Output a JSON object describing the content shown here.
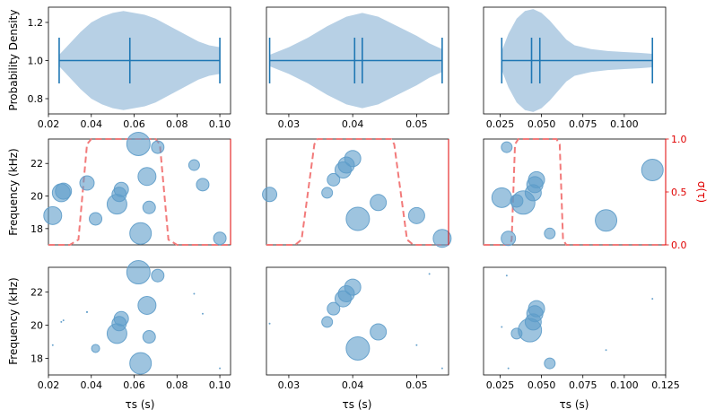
{
  "figure": {
    "labels": {
      "probability_density": "Probability Density",
      "frequency": "Frequency (kHz)",
      "sigma": "σ(τ)",
      "tau_s": "τs (s)"
    }
  },
  "chart_data": [
    {
      "type": "violin",
      "name": "violin-col1",
      "orientation": "horizontal",
      "ylabel": "Probability Density",
      "ylim": [
        0.72,
        1.28
      ],
      "yticks": [
        0.8,
        1.0,
        1.2
      ],
      "ytick_labels": [
        "0.8",
        "1.0",
        "1.2"
      ],
      "xlim": [
        0.02,
        0.105
      ],
      "xticks": [
        0.02,
        0.04,
        0.06,
        0.08,
        0.1
      ],
      "xtick_labels": [
        "0.02",
        "0.04",
        "0.06",
        "0.08",
        "0.10"
      ],
      "min": 0.025,
      "median": 0.058,
      "max": 0.1,
      "density": [
        [
          0.025,
          0.03
        ],
        [
          0.03,
          0.09
        ],
        [
          0.035,
          0.15
        ],
        [
          0.04,
          0.2
        ],
        [
          0.045,
          0.23
        ],
        [
          0.05,
          0.25
        ],
        [
          0.055,
          0.26
        ],
        [
          0.06,
          0.25
        ],
        [
          0.065,
          0.24
        ],
        [
          0.07,
          0.22
        ],
        [
          0.075,
          0.19
        ],
        [
          0.08,
          0.16
        ],
        [
          0.085,
          0.13
        ],
        [
          0.09,
          0.1
        ],
        [
          0.095,
          0.08
        ],
        [
          0.1,
          0.07
        ]
      ]
    },
    {
      "type": "violin",
      "name": "violin-col2",
      "orientation": "horizontal",
      "ylim": [
        0.72,
        1.28
      ],
      "xlim": [
        0.0265,
        0.055
      ],
      "xticks": [
        0.03,
        0.04,
        0.05
      ],
      "xtick_labels": [
        "0.03",
        "0.04",
        "0.05"
      ],
      "min": 0.027,
      "median": 0.0403,
      "mean": 0.0415,
      "max": 0.054,
      "density": [
        [
          0.027,
          0.03
        ],
        [
          0.03,
          0.07
        ],
        [
          0.033,
          0.12
        ],
        [
          0.036,
          0.18
        ],
        [
          0.039,
          0.23
        ],
        [
          0.0415,
          0.25
        ],
        [
          0.044,
          0.23
        ],
        [
          0.047,
          0.18
        ],
        [
          0.05,
          0.13
        ],
        [
          0.052,
          0.09
        ],
        [
          0.054,
          0.06
        ]
      ]
    },
    {
      "type": "violin",
      "name": "violin-col3",
      "orientation": "horizontal",
      "ylim": [
        0.72,
        1.28
      ],
      "xlim": [
        0.015,
        0.125
      ],
      "xticks": [
        0.025,
        0.05,
        0.075,
        0.1
      ],
      "xtick_labels": [
        "0.025",
        "0.050",
        "0.075",
        "0.100"
      ],
      "min": 0.026,
      "median": 0.044,
      "mean": 0.049,
      "max": 0.117,
      "density": [
        [
          0.026,
          0.05
        ],
        [
          0.03,
          0.14
        ],
        [
          0.035,
          0.22
        ],
        [
          0.04,
          0.26
        ],
        [
          0.045,
          0.27
        ],
        [
          0.05,
          0.25
        ],
        [
          0.055,
          0.21
        ],
        [
          0.06,
          0.16
        ],
        [
          0.065,
          0.11
        ],
        [
          0.07,
          0.08
        ],
        [
          0.08,
          0.06
        ],
        [
          0.09,
          0.05
        ],
        [
          0.1,
          0.045
        ],
        [
          0.11,
          0.04
        ],
        [
          0.117,
          0.035
        ]
      ]
    },
    {
      "type": "scatter",
      "name": "scatter-row2-col1",
      "ylabel": "Frequency (kHz)",
      "xlim": [
        0.02,
        0.105
      ],
      "ylim": [
        17.0,
        23.5
      ],
      "yticks": [
        18,
        20,
        22
      ],
      "ytick_labels": [
        "18",
        "20",
        "22"
      ],
      "points": [
        [
          0.022,
          18.8,
          10
        ],
        [
          0.026,
          20.2,
          10
        ],
        [
          0.027,
          20.3,
          9
        ],
        [
          0.038,
          20.8,
          8
        ],
        [
          0.042,
          18.6,
          7
        ],
        [
          0.052,
          19.5,
          11
        ],
        [
          0.053,
          20.1,
          8
        ],
        [
          0.054,
          20.4,
          8
        ],
        [
          0.062,
          23.2,
          13
        ],
        [
          0.063,
          17.7,
          12
        ],
        [
          0.066,
          21.2,
          10
        ],
        [
          0.067,
          19.3,
          7
        ],
        [
          0.071,
          23.0,
          7
        ],
        [
          0.088,
          21.9,
          6
        ],
        [
          0.092,
          20.7,
          7
        ],
        [
          0.1,
          17.4,
          7
        ]
      ],
      "overlay": {
        "type": "line",
        "style": "dashed",
        "ylim": [
          0,
          1
        ],
        "x": [
          0.02,
          0.03,
          0.034,
          0.036,
          0.038,
          0.04,
          0.07,
          0.072,
          0.074,
          0.076,
          0.08,
          0.105
        ],
        "y": [
          0,
          0,
          0.05,
          0.5,
          0.95,
          1,
          1,
          0.95,
          0.5,
          0.05,
          0,
          0
        ]
      }
    },
    {
      "type": "scatter",
      "name": "scatter-row2-col2",
      "xlim": [
        0.0265,
        0.055
      ],
      "ylim": [
        17.0,
        23.5
      ],
      "points": [
        [
          0.027,
          20.1,
          8
        ],
        [
          0.036,
          20.2,
          6
        ],
        [
          0.037,
          21.0,
          7
        ],
        [
          0.0385,
          21.6,
          9
        ],
        [
          0.039,
          21.9,
          9
        ],
        [
          0.04,
          22.3,
          9
        ],
        [
          0.0408,
          18.6,
          13
        ],
        [
          0.044,
          19.6,
          9
        ],
        [
          0.05,
          18.8,
          9
        ],
        [
          0.054,
          17.4,
          10
        ]
      ],
      "overlay": {
        "type": "line",
        "style": "dashed",
        "ylim": [
          0,
          1
        ],
        "x": [
          0.0265,
          0.031,
          0.032,
          0.033,
          0.034,
          0.0345,
          0.046,
          0.0465,
          0.0475,
          0.0485,
          0.0495,
          0.055
        ],
        "y": [
          0,
          0,
          0.05,
          0.5,
          0.95,
          1,
          1,
          0.95,
          0.5,
          0.05,
          0,
          0
        ]
      }
    },
    {
      "type": "scatter",
      "name": "scatter-row2-col3",
      "xlim": [
        0.015,
        0.125
      ],
      "ylim": [
        17.0,
        23.5
      ],
      "y2label": "σ(τ)",
      "y2lim": [
        0,
        1
      ],
      "y2ticks": [
        0,
        0.5,
        1
      ],
      "y2tick_labels": [
        "0.0",
        "0.5",
        "1.0"
      ],
      "points": [
        [
          0.026,
          19.9,
          11
        ],
        [
          0.029,
          23.0,
          6
        ],
        [
          0.03,
          17.4,
          8
        ],
        [
          0.035,
          19.7,
          7
        ],
        [
          0.039,
          19.6,
          13
        ],
        [
          0.045,
          20.2,
          9
        ],
        [
          0.046,
          20.7,
          9
        ],
        [
          0.047,
          21.0,
          9
        ],
        [
          0.055,
          17.7,
          6
        ],
        [
          0.089,
          18.5,
          12
        ],
        [
          0.117,
          21.6,
          12
        ]
      ],
      "overlay": {
        "type": "line",
        "style": "dashed",
        "ylim": [
          0,
          1
        ],
        "x": [
          0.015,
          0.031,
          0.032,
          0.033,
          0.034,
          0.036,
          0.059,
          0.061,
          0.062,
          0.063,
          0.065,
          0.125
        ],
        "y": [
          0,
          0,
          0.05,
          0.5,
          0.95,
          1,
          1,
          0.95,
          0.5,
          0.05,
          0,
          0
        ]
      }
    },
    {
      "type": "scatter",
      "name": "scatter-row3-col1",
      "ylabel": "Frequency (kHz)",
      "xlabel": "τs (s)",
      "xlim": [
        0.02,
        0.105
      ],
      "ylim": [
        17.0,
        23.5
      ],
      "yticks": [
        18,
        20,
        22
      ],
      "ytick_labels": [
        "18",
        "20",
        "22"
      ],
      "xticks": [
        0.02,
        0.04,
        0.06,
        0.08,
        0.1
      ],
      "xtick_labels": [
        "0.02",
        "0.04",
        "0.06",
        "0.08",
        "0.10"
      ],
      "points": [
        [
          0.022,
          18.8,
          0.5
        ],
        [
          0.026,
          20.2,
          0.5
        ],
        [
          0.027,
          20.3,
          0.5
        ],
        [
          0.038,
          20.8,
          0.6
        ],
        [
          0.042,
          18.6,
          4.5
        ],
        [
          0.052,
          19.5,
          11
        ],
        [
          0.053,
          20.1,
          8
        ],
        [
          0.054,
          20.4,
          8
        ],
        [
          0.062,
          23.2,
          13
        ],
        [
          0.063,
          17.7,
          12
        ],
        [
          0.066,
          21.2,
          10
        ],
        [
          0.067,
          19.3,
          7
        ],
        [
          0.071,
          23.0,
          7
        ],
        [
          0.088,
          21.9,
          0.5
        ],
        [
          0.092,
          20.7,
          0.5
        ],
        [
          0.1,
          17.4,
          0.5
        ]
      ]
    },
    {
      "type": "scatter",
      "name": "scatter-row3-col2",
      "xlabel": "τs (s)",
      "xlim": [
        0.0265,
        0.055
      ],
      "ylim": [
        17.0,
        23.5
      ],
      "xticks": [
        0.03,
        0.04,
        0.05
      ],
      "xtick_labels": [
        "0.03",
        "0.04",
        "0.05"
      ],
      "points": [
        [
          0.027,
          20.1,
          0.5
        ],
        [
          0.036,
          20.2,
          6
        ],
        [
          0.037,
          21.0,
          7
        ],
        [
          0.0385,
          21.6,
          9
        ],
        [
          0.039,
          21.9,
          9
        ],
        [
          0.04,
          22.3,
          9
        ],
        [
          0.0408,
          18.6,
          13
        ],
        [
          0.044,
          19.6,
          9
        ],
        [
          0.05,
          18.8,
          0.5
        ],
        [
          0.052,
          23.1,
          0.5
        ],
        [
          0.054,
          17.4,
          0.5
        ]
      ]
    },
    {
      "type": "scatter",
      "name": "scatter-row3-col3",
      "xlabel": "τs (s)",
      "xlim": [
        0.015,
        0.125
      ],
      "ylim": [
        17.0,
        23.5
      ],
      "xticks": [
        0.025,
        0.05,
        0.075,
        0.1,
        0.125
      ],
      "xtick_labels": [
        "0.025",
        "0.050",
        "0.075",
        "0.100",
        "0.125"
      ],
      "points": [
        [
          0.026,
          19.9,
          0.5
        ],
        [
          0.029,
          23.0,
          0.5
        ],
        [
          0.03,
          17.4,
          0.5
        ],
        [
          0.035,
          19.5,
          6
        ],
        [
          0.043,
          19.7,
          13
        ],
        [
          0.045,
          20.2,
          9
        ],
        [
          0.046,
          20.7,
          9
        ],
        [
          0.047,
          21.0,
          9
        ],
        [
          0.055,
          17.7,
          6
        ],
        [
          0.089,
          18.5,
          0.5
        ],
        [
          0.117,
          21.6,
          0.5
        ]
      ]
    }
  ]
}
